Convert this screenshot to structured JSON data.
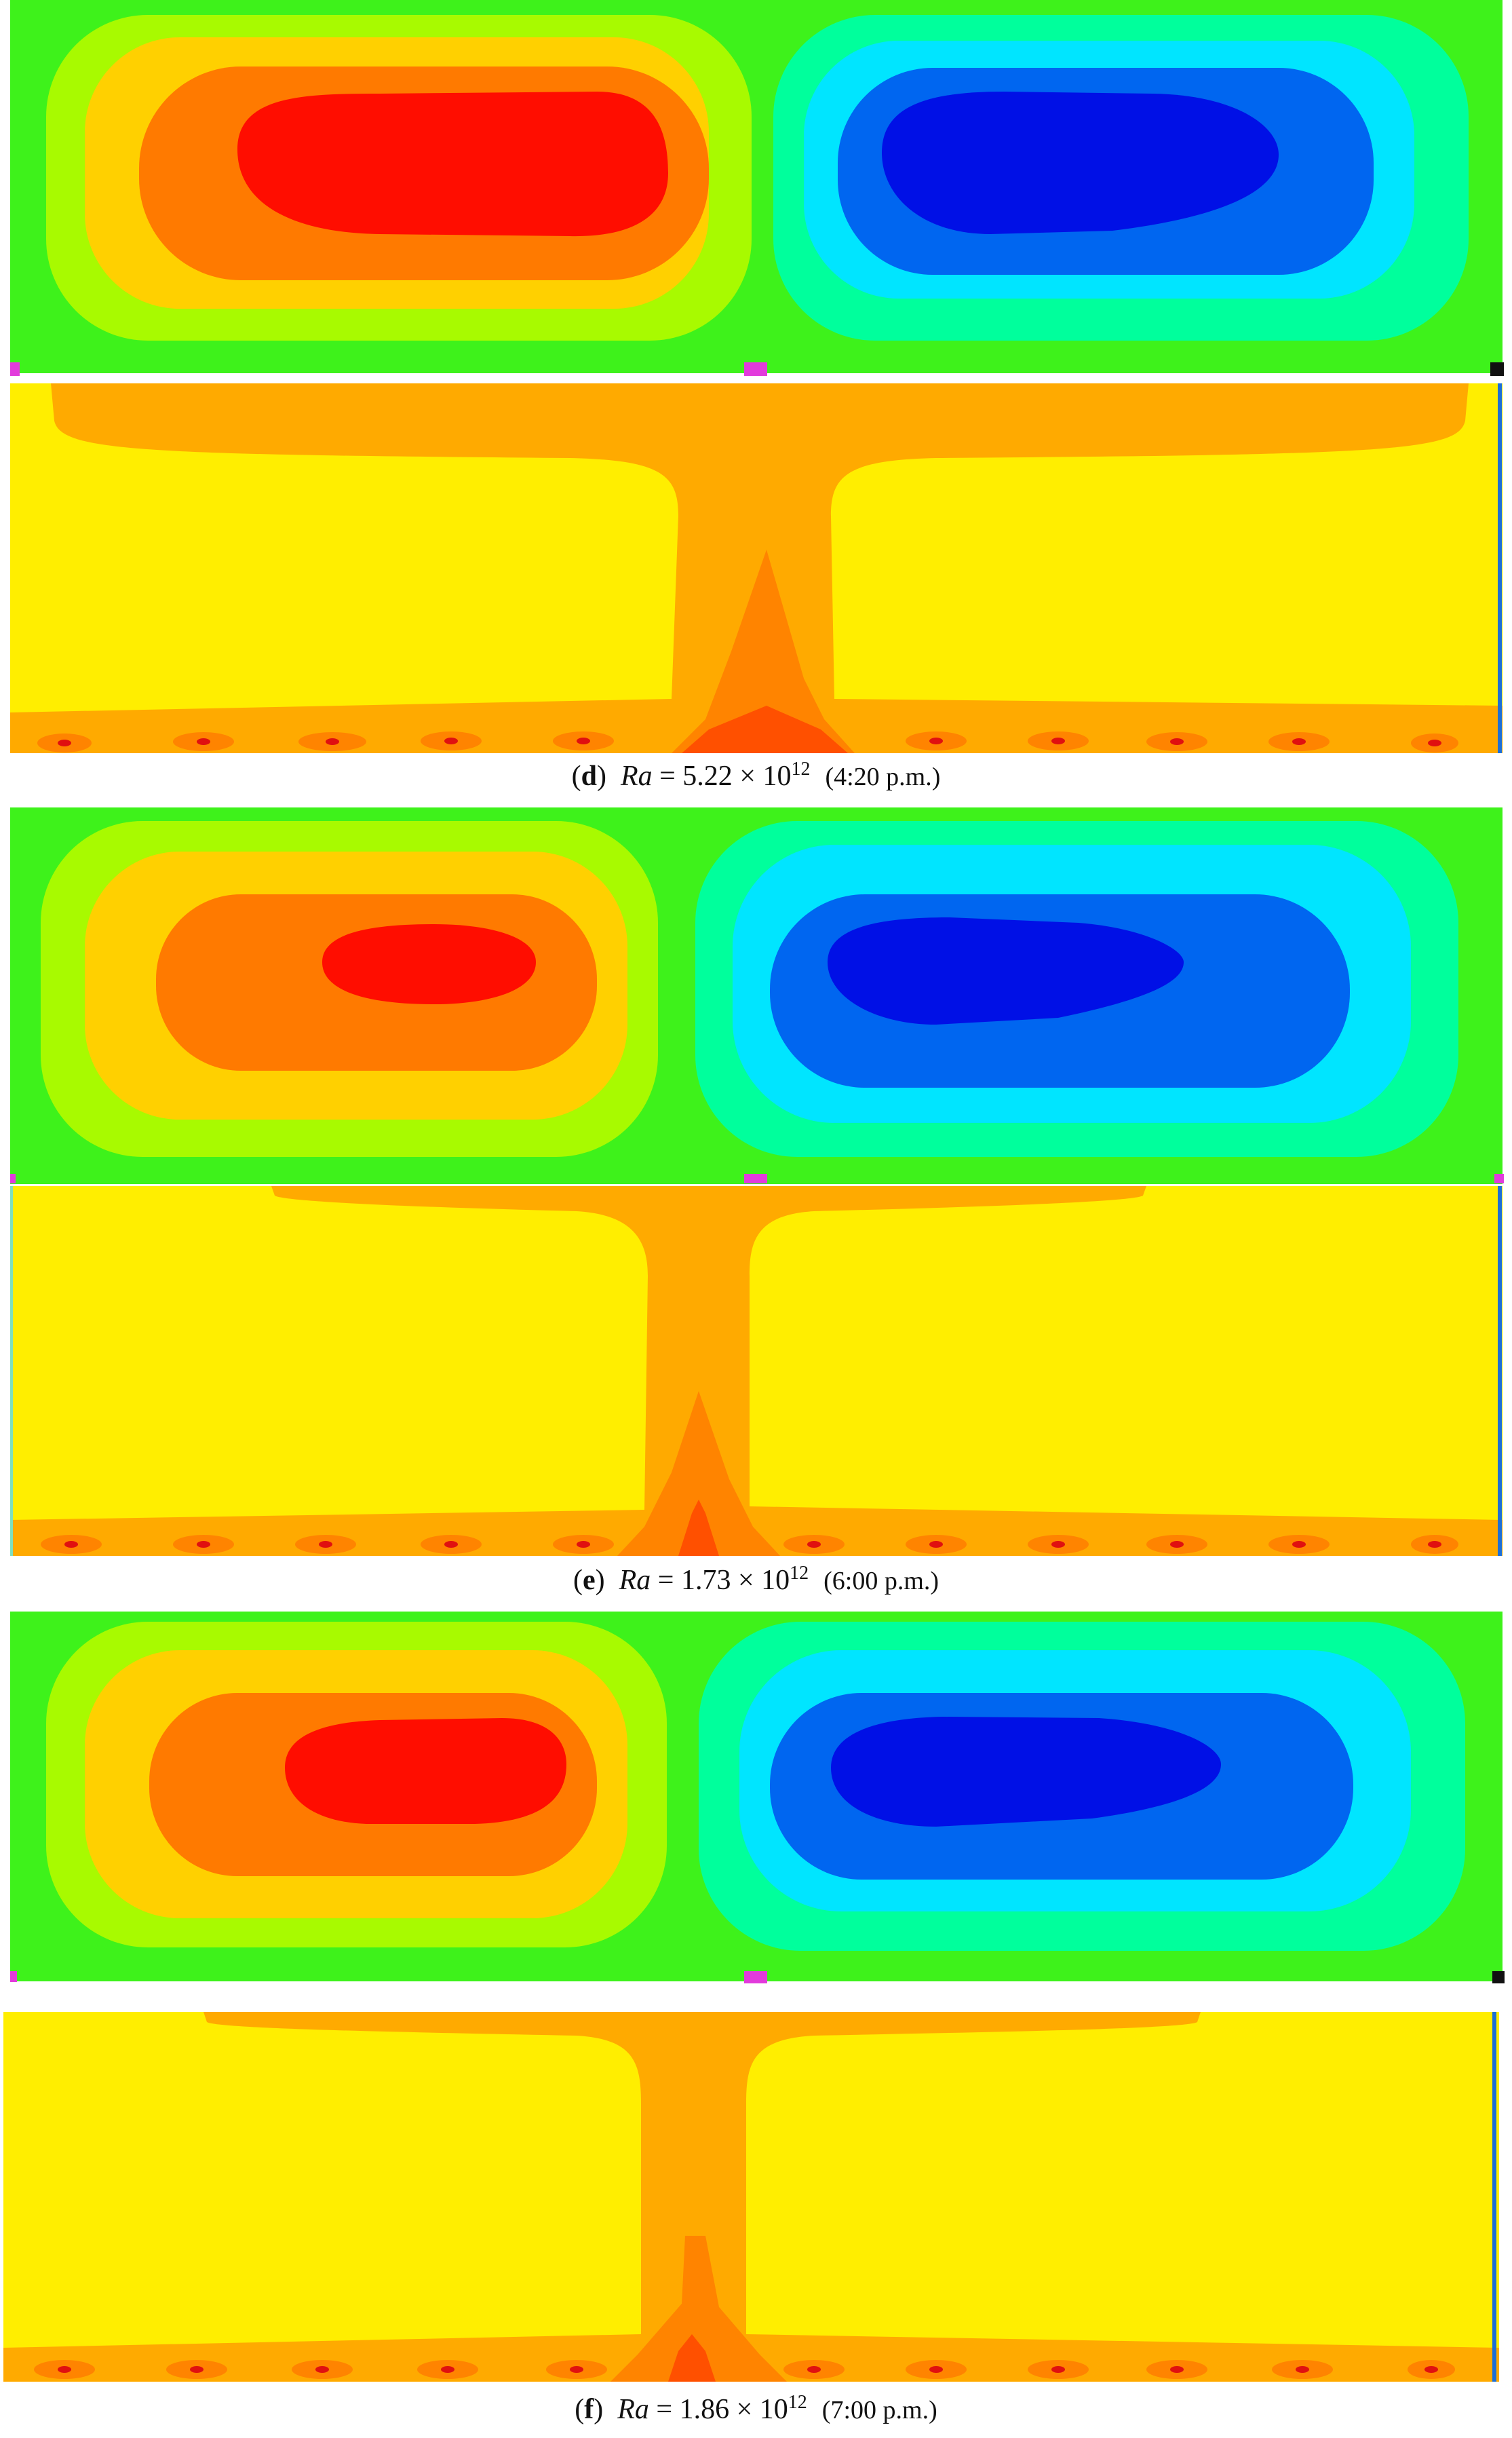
{
  "figure": {
    "panels": [
      {
        "label": "d",
        "ra_symbol": "Ra",
        "ra_mantissa": "5.22",
        "ra_exponent": "12",
        "time": "(4:20 p.m.)"
      },
      {
        "label": "e",
        "ra_symbol": "Ra",
        "ra_mantissa": "1.73",
        "ra_exponent": "12",
        "time": "(6:00 p.m.)"
      },
      {
        "label": "f",
        "ra_symbol": "Ra",
        "ra_mantissa": "1.86",
        "ra_exponent": "12",
        "time": "(7:00 p.m.)"
      }
    ],
    "colors": {
      "streamline_background": "#3ef21b",
      "positive_levels": [
        "#a8fa00",
        "#ffd000",
        "#ff7a00",
        "#ff0d00"
      ],
      "negative_levels": [
        "#00ff9c",
        "#00e5ff",
        "#0066f0",
        "#0010e6"
      ],
      "temperature_background": "#ffee00",
      "temperature_levels": [
        "#ffaa00",
        "#ff8400",
        "#ff5000",
        "#e01010"
      ],
      "marker_magenta": "#e23bdc",
      "marker_black": "#111111",
      "edge_blue": "#1e6fd6"
    }
  }
}
